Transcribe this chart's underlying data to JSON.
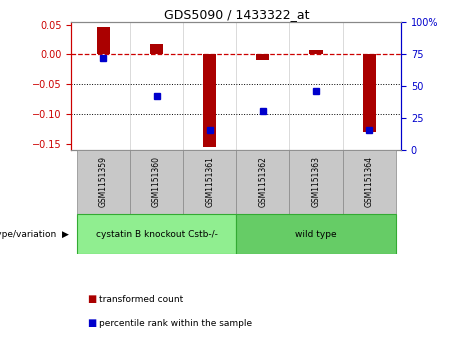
{
  "title": "GDS5090 / 1433322_at",
  "samples": [
    "GSM1151359",
    "GSM1151360",
    "GSM1151361",
    "GSM1151362",
    "GSM1151363",
    "GSM1151364"
  ],
  "red_bars": [
    0.047,
    0.018,
    -0.155,
    -0.01,
    0.008,
    -0.13
  ],
  "blue_percentile": [
    72,
    42,
    15,
    30,
    46,
    15
  ],
  "ylim_left": [
    -0.16,
    0.055
  ],
  "ylim_right": [
    0,
    100
  ],
  "yticks_left": [
    0.05,
    0.0,
    -0.05,
    -0.1,
    -0.15
  ],
  "yticks_right": [
    100,
    75,
    50,
    25,
    0
  ],
  "group_configs": [
    {
      "indices": [
        0,
        1,
        2
      ],
      "label": "cystatin B knockout Cstb-/-",
      "color": "#90EE90"
    },
    {
      "indices": [
        3,
        4,
        5
      ],
      "label": "wild type",
      "color": "#66CC66"
    }
  ],
  "bar_color": "#AA0000",
  "dot_color": "#0000CC",
  "dashed_line_color": "#CC0000",
  "dotted_line_color": "#000000",
  "bg_color": "#FFFFFF",
  "genotype_label": "genotype/variation",
  "legend_items": [
    "transformed count",
    "percentile rank within the sample"
  ],
  "bar_width": 0.25
}
